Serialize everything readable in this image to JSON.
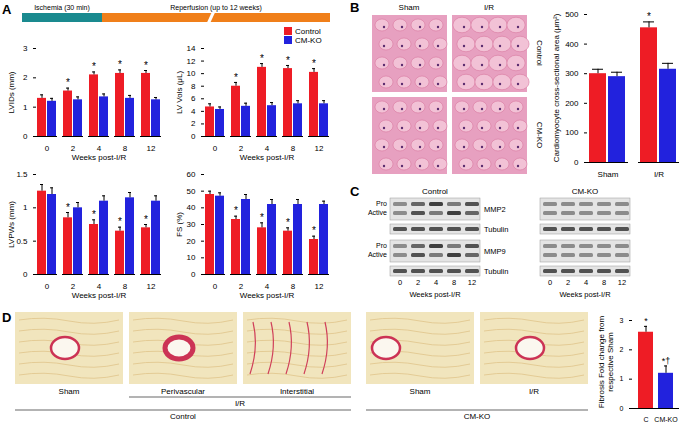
{
  "panel_labels": [
    "A",
    "B",
    "C",
    "D"
  ],
  "schematic": {
    "ischemia": "Ischemia (30 min)",
    "reperfusion": "Reperfusion (up to 12 weeks)"
  },
  "chart_data": [
    {
      "type": "bar",
      "ylabel": "LVIDs (mm)",
      "xlabel": "Weeks post-I/R",
      "categories": [
        "0",
        "2",
        "4",
        "8",
        "12"
      ],
      "series": [
        {
          "name": "Control",
          "color": "#ee1c25",
          "values": [
            1.3,
            1.55,
            2.1,
            2.15,
            2.15
          ],
          "errors": [
            0.12,
            0.1,
            0.1,
            0.12,
            0.1
          ]
        },
        {
          "name": "CM-KO",
          "color": "#2222dd",
          "values": [
            1.2,
            1.25,
            1.35,
            1.3,
            1.25
          ],
          "errors": [
            0.1,
            0.1,
            0.1,
            0.1,
            0.08
          ]
        }
      ],
      "ylim": [
        0,
        3
      ],
      "yticks": [
        0,
        1,
        2,
        3
      ],
      "annotations": [
        {
          "category": "2",
          "series": "Control",
          "text": "*"
        },
        {
          "category": "4",
          "series": "Control",
          "text": "*"
        },
        {
          "category": "8",
          "series": "Control",
          "text": "*"
        },
        {
          "category": "12",
          "series": "Control",
          "text": "*"
        }
      ]
    },
    {
      "type": "bar",
      "ylabel": "LV Vols (μL)",
      "xlabel": "Weeks post-I/R",
      "categories": [
        "0",
        "2",
        "4",
        "8",
        "12"
      ],
      "series": [
        {
          "name": "Control",
          "color": "#ee1c25",
          "values": [
            4.7,
            8.0,
            11.0,
            10.8,
            10.2
          ],
          "errors": [
            0.5,
            0.6,
            0.6,
            0.5,
            0.6
          ]
        },
        {
          "name": "CM-KO",
          "color": "#2222dd",
          "values": [
            4.3,
            4.8,
            4.9,
            5.2,
            5.2
          ],
          "errors": [
            0.4,
            0.5,
            0.5,
            0.5,
            0.5
          ]
        }
      ],
      "ylim": [
        0,
        14
      ],
      "yticks": [
        0,
        2,
        4,
        6,
        8,
        10,
        12,
        14
      ],
      "annotations": [
        {
          "category": "2",
          "series": "Control",
          "text": "*"
        },
        {
          "category": "4",
          "series": "Control",
          "text": "*"
        },
        {
          "category": "8",
          "series": "Control",
          "text": "*"
        },
        {
          "category": "12",
          "series": "Control",
          "text": "*"
        }
      ]
    },
    {
      "type": "bar",
      "ylabel": "LVPWs (mm)",
      "xlabel": "Weeks post-I/R",
      "categories": [
        "0",
        "2",
        "4",
        "8",
        "12"
      ],
      "series": [
        {
          "name": "Control",
          "color": "#ee1c25",
          "values": [
            1.25,
            0.85,
            0.75,
            0.65,
            0.7
          ],
          "errors": [
            0.1,
            0.08,
            0.07,
            0.06,
            0.05
          ]
        },
        {
          "name": "CM-KO",
          "color": "#2222dd",
          "values": [
            1.2,
            1.0,
            1.1,
            1.15,
            1.1
          ],
          "errors": [
            0.1,
            0.08,
            0.08,
            0.08,
            0.08
          ]
        }
      ],
      "ylim": [
        0,
        1.5
      ],
      "yticks": [
        0,
        0.5,
        1,
        1.5
      ],
      "annotations": [
        {
          "category": "2",
          "series": "Control",
          "text": "*"
        },
        {
          "category": "4",
          "series": "Control",
          "text": "*"
        },
        {
          "category": "8",
          "series": "Control",
          "text": "*"
        },
        {
          "category": "12",
          "series": "Control",
          "text": "*"
        }
      ]
    },
    {
      "type": "bar",
      "ylabel": "FS (%)",
      "xlabel": "Weeks post-I/R",
      "categories": [
        "0",
        "2",
        "4",
        "8",
        "12"
      ],
      "series": [
        {
          "name": "Control",
          "color": "#ee1c25",
          "values": [
            48,
            33,
            28,
            26,
            21
          ],
          "errors": [
            2,
            2,
            3,
            2,
            2
          ]
        },
        {
          "name": "CM-KO",
          "color": "#2222dd",
          "values": [
            47,
            45,
            42,
            42,
            42
          ],
          "errors": [
            2,
            3,
            3,
            3,
            2
          ]
        }
      ],
      "ylim": [
        0,
        60
      ],
      "yticks": [
        0,
        10,
        20,
        30,
        40,
        50,
        60
      ],
      "annotations": [
        {
          "category": "2",
          "series": "Control",
          "text": "*"
        },
        {
          "category": "4",
          "series": "Control",
          "text": "*"
        },
        {
          "category": "8",
          "series": "Control",
          "text": "*"
        },
        {
          "category": "12",
          "series": "Control",
          "text": "*"
        }
      ]
    },
    {
      "type": "bar",
      "ylabel": "Cardiomyocyte cross-sectional area (μm²)",
      "categories": [
        "Sham",
        "I/R"
      ],
      "series": [
        {
          "name": "Control",
          "color": "#ee1c25",
          "values": [
            300,
            455
          ],
          "errors": [
            15,
            20
          ]
        },
        {
          "name": "CM-KO",
          "color": "#2222dd",
          "values": [
            290,
            315
          ],
          "errors": [
            15,
            20
          ]
        }
      ],
      "ylim": [
        0,
        500
      ],
      "yticks": [
        0,
        100,
        200,
        300,
        400,
        500
      ],
      "annotations": [
        {
          "category": "I/R",
          "series": "Control",
          "text": "*"
        }
      ]
    },
    {
      "type": "bar",
      "ylabel": "Fibrosis Fold change from respective Sham",
      "categories": [
        "C",
        "CM-KO"
      ],
      "values": [
        2.6,
        1.2
      ],
      "errors": [
        0.2,
        0.25
      ],
      "colors": [
        "#ee1c25",
        "#2222dd"
      ],
      "ylim": [
        0,
        3
      ],
      "yticks": [
        0,
        1,
        2,
        3
      ],
      "annotations": [
        {
          "category": "C",
          "text": "*"
        },
        {
          "category": "CM-KO",
          "text": "*†"
        }
      ]
    }
  ],
  "panel_b_images": {
    "columns": [
      "Sham",
      "I/R"
    ],
    "rows": [
      "Control",
      "CM-KO"
    ]
  },
  "panel_c": {
    "groups": [
      "Control",
      "CM-KO"
    ],
    "blots": [
      {
        "name": "MMP2",
        "bands": [
          "Pro",
          "Active"
        ]
      },
      {
        "name": "Tubulin"
      },
      {
        "name": "MMP9",
        "bands": [
          "Pro",
          "Active"
        ]
      },
      {
        "name": "Tubulin"
      }
    ],
    "lanes": [
      "0",
      "2",
      "4",
      "8",
      "12"
    ],
    "xlabel": "Weeks post-I/R"
  },
  "panel_d_images": {
    "groups": [
      {
        "name": "Control",
        "images": [
          {
            "label": "Sham"
          },
          {
            "label": "I/R",
            "subpanels": [
              "Perivascular",
              "Interstitial"
            ]
          }
        ]
      },
      {
        "name": "CM-KO",
        "images": [
          {
            "label": "Sham"
          },
          {
            "label": "I/R"
          }
        ]
      }
    ]
  }
}
